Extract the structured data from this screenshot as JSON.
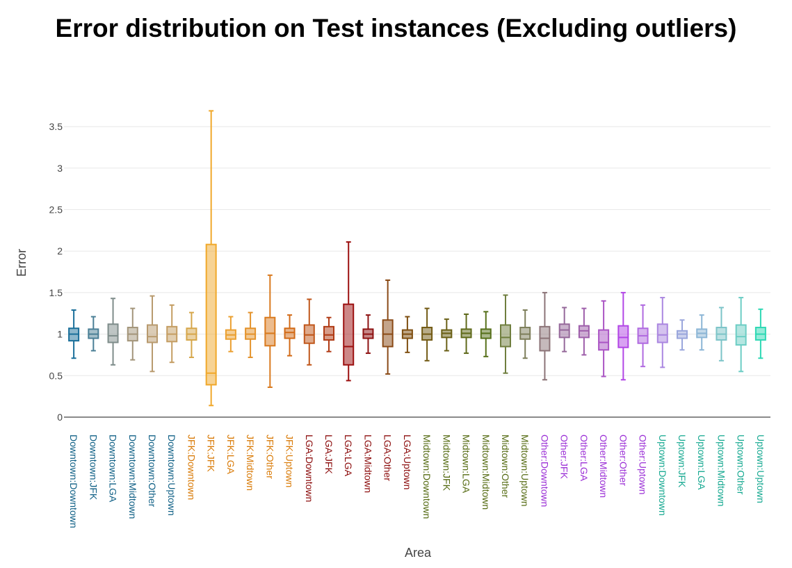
{
  "chart_data": {
    "type": "box",
    "title": "Error distribution on Test instances (Excluding outliers)",
    "xlabel": "Area",
    "ylabel": "Error",
    "ylim": [
      0,
      3.7
    ],
    "yticks": [
      0,
      0.5,
      1,
      1.5,
      2,
      2.5,
      3,
      3.5
    ],
    "ytick_labels": [
      "0",
      "0.5",
      "1",
      "1.5",
      "2",
      "2.5",
      "3",
      "3.5"
    ],
    "grid": true,
    "legend": "none",
    "group_colors": {
      "Downtown": "#0e5f85",
      "JFK": "#d97a06",
      "LGA": "#8b0a0a",
      "Midtown": "#556b12",
      "Other": "#9b2fd6",
      "Uptown": "#14a890"
    },
    "boxes": [
      {
        "category": "Downtown:Downtown",
        "group": "Downtown",
        "color": "#1a6f9a",
        "min": 0.71,
        "q1": 0.92,
        "median": 1.0,
        "q3": 1.07,
        "max": 1.29
      },
      {
        "category": "Downtown:JFK",
        "group": "Downtown",
        "color": "#4a7f96",
        "min": 0.8,
        "q1": 0.95,
        "median": 1.0,
        "q3": 1.06,
        "max": 1.21
      },
      {
        "category": "Downtown:LGA",
        "group": "Downtown",
        "color": "#7e8c8a",
        "min": 0.63,
        "q1": 0.9,
        "median": 0.98,
        "q3": 1.12,
        "max": 1.43
      },
      {
        "category": "Downtown:Midtown",
        "group": "Downtown",
        "color": "#a3957a",
        "min": 0.69,
        "q1": 0.92,
        "median": 1.0,
        "q3": 1.08,
        "max": 1.31
      },
      {
        "category": "Downtown:Other",
        "group": "Downtown",
        "color": "#b89a6e",
        "min": 0.55,
        "q1": 0.9,
        "median": 0.97,
        "q3": 1.11,
        "max": 1.46
      },
      {
        "category": "Downtown:Uptown",
        "group": "Downtown",
        "color": "#c49d62",
        "min": 0.66,
        "q1": 0.91,
        "median": 1.0,
        "q3": 1.09,
        "max": 1.35
      },
      {
        "category": "JFK:Downtown",
        "group": "JFK",
        "color": "#d6a64a",
        "min": 0.72,
        "q1": 0.93,
        "median": 1.0,
        "q3": 1.07,
        "max": 1.26
      },
      {
        "category": "JFK:JFK",
        "group": "JFK",
        "color": "#f0a82a",
        "min": 0.14,
        "q1": 0.39,
        "median": 0.53,
        "q3": 2.08,
        "max": 3.69
      },
      {
        "category": "JFK:LGA",
        "group": "JFK",
        "color": "#eba030",
        "min": 0.79,
        "q1": 0.94,
        "median": 0.99,
        "q3": 1.05,
        "max": 1.21
      },
      {
        "category": "JFK:Midtown",
        "group": "JFK",
        "color": "#e4922a",
        "min": 0.72,
        "q1": 0.94,
        "median": 1.0,
        "q3": 1.07,
        "max": 1.26
      },
      {
        "category": "JFK:Other",
        "group": "JFK",
        "color": "#d97a1e",
        "min": 0.36,
        "q1": 0.86,
        "median": 1.01,
        "q3": 1.2,
        "max": 1.71
      },
      {
        "category": "JFK:Uptown",
        "group": "JFK",
        "color": "#d26a16",
        "min": 0.74,
        "q1": 0.95,
        "median": 1.02,
        "q3": 1.07,
        "max": 1.23
      },
      {
        "category": "LGA:Downtown",
        "group": "LGA",
        "color": "#c0561a",
        "min": 0.63,
        "q1": 0.89,
        "median": 0.99,
        "q3": 1.11,
        "max": 1.42
      },
      {
        "category": "LGA:JFK",
        "group": "LGA",
        "color": "#b03a14",
        "min": 0.79,
        "q1": 0.93,
        "median": 0.99,
        "q3": 1.09,
        "max": 1.2
      },
      {
        "category": "LGA:LGA",
        "group": "LGA",
        "color": "#9c1010",
        "min": 0.44,
        "q1": 0.63,
        "median": 0.85,
        "q3": 1.36,
        "max": 2.11
      },
      {
        "category": "LGA:Midtown",
        "group": "LGA",
        "color": "#8e1212",
        "min": 0.77,
        "q1": 0.95,
        "median": 1.0,
        "q3": 1.06,
        "max": 1.23
      },
      {
        "category": "LGA:Other",
        "group": "LGA",
        "color": "#8a4a16",
        "min": 0.52,
        "q1": 0.85,
        "median": 1.0,
        "q3": 1.17,
        "max": 1.65
      },
      {
        "category": "LGA:Uptown",
        "group": "LGA",
        "color": "#7e4e10",
        "min": 0.78,
        "q1": 0.95,
        "median": 1.0,
        "q3": 1.05,
        "max": 1.21
      },
      {
        "category": "Midtown:Downtown",
        "group": "Midtown",
        "color": "#725a14",
        "min": 0.68,
        "q1": 0.93,
        "median": 1.0,
        "q3": 1.08,
        "max": 1.31
      },
      {
        "category": "Midtown:JFK",
        "group": "Midtown",
        "color": "#6a6016",
        "min": 0.8,
        "q1": 0.96,
        "median": 1.01,
        "q3": 1.05,
        "max": 1.18
      },
      {
        "category": "Midtown:LGA",
        "group": "Midtown",
        "color": "#5f6a1a",
        "min": 0.77,
        "q1": 0.96,
        "median": 1.01,
        "q3": 1.06,
        "max": 1.24
      },
      {
        "category": "Midtown:Midtown",
        "group": "Midtown",
        "color": "#56701a",
        "min": 0.73,
        "q1": 0.95,
        "median": 1.01,
        "q3": 1.06,
        "max": 1.27
      },
      {
        "category": "Midtown:Other",
        "group": "Midtown",
        "color": "#6f7e3e",
        "min": 0.53,
        "q1": 0.85,
        "median": 0.96,
        "q3": 1.11,
        "max": 1.47
      },
      {
        "category": "Midtown:Uptown",
        "group": "Midtown",
        "color": "#7d7e5a",
        "min": 0.71,
        "q1": 0.94,
        "median": 1.0,
        "q3": 1.08,
        "max": 1.29
      },
      {
        "category": "Other:Downtown",
        "group": "Other",
        "color": "#8c7478",
        "min": 0.45,
        "q1": 0.8,
        "median": 0.95,
        "q3": 1.09,
        "max": 1.5
      },
      {
        "category": "Other:JFK",
        "group": "Other",
        "color": "#95689a",
        "min": 0.79,
        "q1": 0.96,
        "median": 1.05,
        "q3": 1.12,
        "max": 1.32
      },
      {
        "category": "Other:LGA",
        "group": "Other",
        "color": "#9e5eaa",
        "min": 0.75,
        "q1": 0.96,
        "median": 1.04,
        "q3": 1.1,
        "max": 1.31
      },
      {
        "category": "Other:Midtown",
        "group": "Other",
        "color": "#aa54c4",
        "min": 0.49,
        "q1": 0.81,
        "median": 0.9,
        "q3": 1.05,
        "max": 1.4
      },
      {
        "category": "Other:Other",
        "group": "Other",
        "color": "#b246e6",
        "min": 0.45,
        "q1": 0.84,
        "median": 0.96,
        "q3": 1.1,
        "max": 1.5
      },
      {
        "category": "Other:Uptown",
        "group": "Other",
        "color": "#b06ae0",
        "min": 0.61,
        "q1": 0.89,
        "median": 0.98,
        "q3": 1.07,
        "max": 1.35
      },
      {
        "category": "Uptown:Downtown",
        "group": "Uptown",
        "color": "#aa86e0",
        "min": 0.6,
        "q1": 0.9,
        "median": 0.99,
        "q3": 1.12,
        "max": 1.44
      },
      {
        "category": "Uptown:JFK",
        "group": "Uptown",
        "color": "#9aa6dc",
        "min": 0.81,
        "q1": 0.95,
        "median": 1.0,
        "q3": 1.04,
        "max": 1.17
      },
      {
        "category": "Uptown:LGA",
        "group": "Uptown",
        "color": "#8cb6d6",
        "min": 0.81,
        "q1": 0.96,
        "median": 1.01,
        "q3": 1.06,
        "max": 1.23
      },
      {
        "category": "Uptown:Midtown",
        "group": "Uptown",
        "color": "#7cc4c8",
        "min": 0.68,
        "q1": 0.93,
        "median": 1.0,
        "q3": 1.08,
        "max": 1.32
      },
      {
        "category": "Uptown:Other",
        "group": "Uptown",
        "color": "#6ccdc4",
        "min": 0.55,
        "q1": 0.87,
        "median": 0.97,
        "q3": 1.11,
        "max": 1.44
      },
      {
        "category": "Uptown:Uptown",
        "group": "Uptown",
        "color": "#2ed8b4",
        "min": 0.71,
        "q1": 0.93,
        "median": 1.0,
        "q3": 1.08,
        "max": 1.3
      }
    ]
  }
}
